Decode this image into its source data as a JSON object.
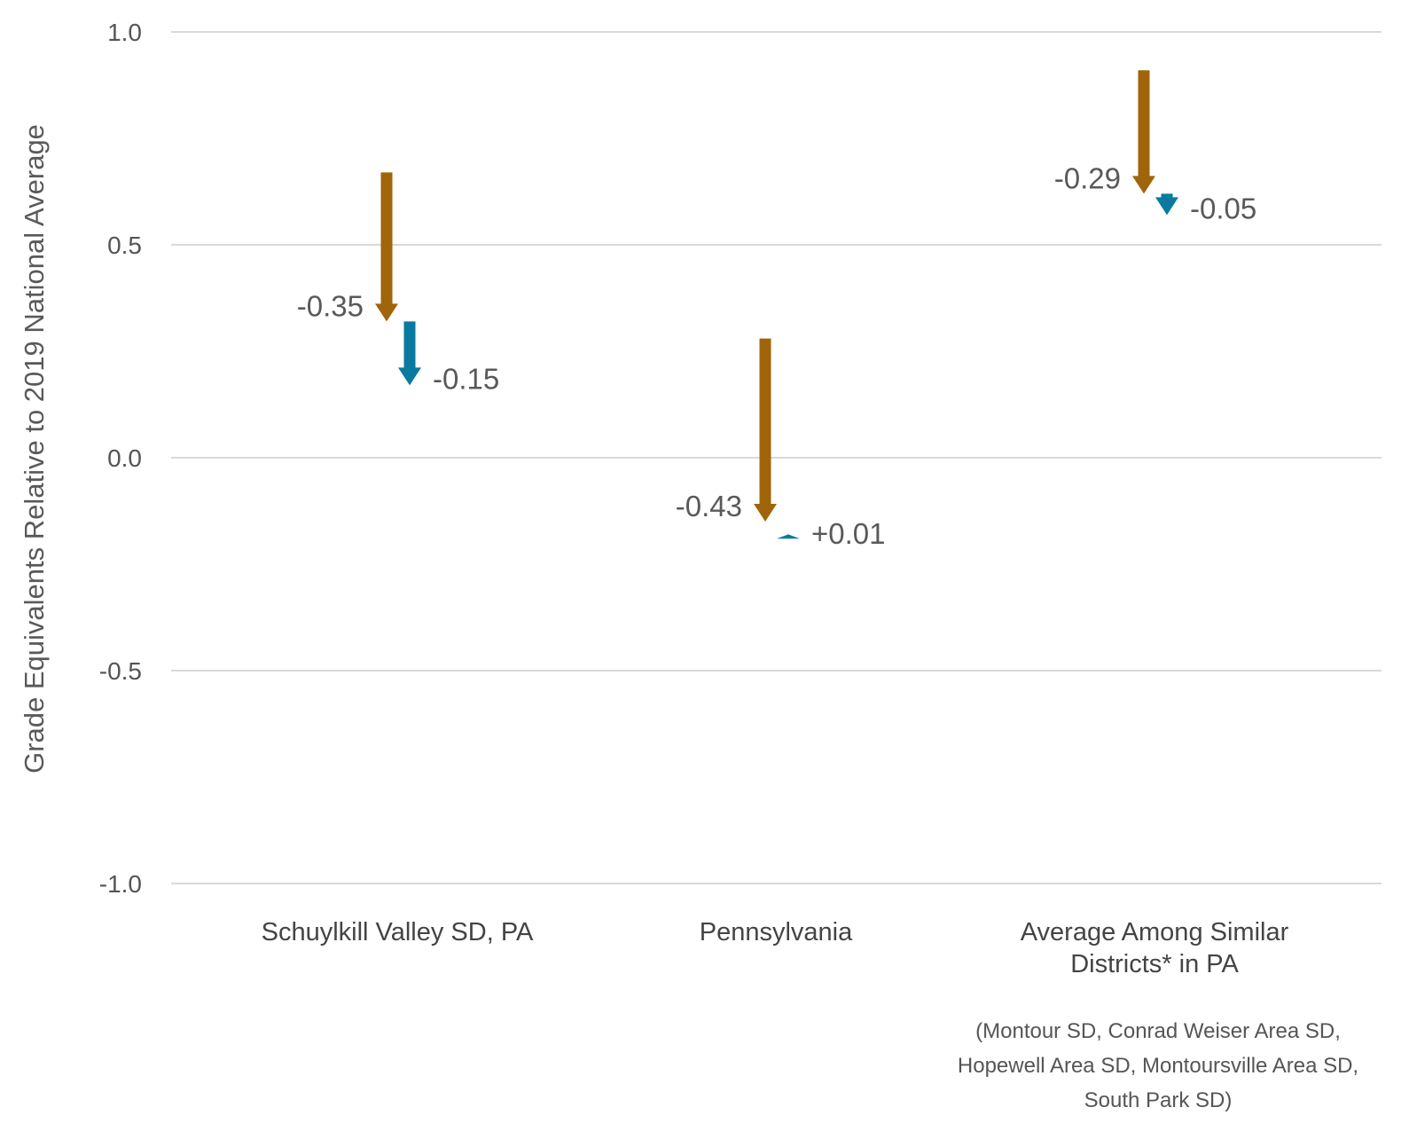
{
  "chart_data": {
    "type": "arrow",
    "ylabel": "Grade Equivalents Relative to 2019 National Average",
    "ylim": [
      -1.0,
      1.0
    ],
    "yticks": [
      {
        "value": 1.0,
        "label": "1.0"
      },
      {
        "value": 0.5,
        "label": "0.5"
      },
      {
        "value": 0.0,
        "label": "0.0"
      },
      {
        "value": -0.5,
        "label": "-0.5"
      },
      {
        "value": -1.0,
        "label": "-1.0"
      }
    ],
    "grid": true,
    "categories": [
      {
        "lines": [
          "Schuylkill Valley SD, PA"
        ]
      },
      {
        "lines": [
          "Pennsylvania"
        ]
      },
      {
        "lines": [
          "Average Among Similar",
          "Districts* in PA"
        ]
      }
    ],
    "category_note": {
      "category_index": 2,
      "lines": [
        "(Montour SD, Conrad Weiser Area SD,",
        "Hopewell Area SD, Montoursville Area SD,",
        "South Park SD)"
      ]
    },
    "series": [
      {
        "color": "#a0640a",
        "arrows": [
          {
            "category_index": 0,
            "start": 0.67,
            "end": 0.32,
            "label": "-0.35"
          },
          {
            "category_index": 1,
            "start": 0.28,
            "end": -0.15,
            "label": "-0.43"
          },
          {
            "category_index": 2,
            "start": 0.91,
            "end": 0.62,
            "label": "-0.29"
          }
        ]
      },
      {
        "color": "#0a7aa0",
        "arrows": [
          {
            "category_index": 0,
            "start": 0.32,
            "end": 0.17,
            "label": "-0.15"
          },
          {
            "category_index": 1,
            "start": -0.19,
            "end": -0.18,
            "label": "+0.01"
          },
          {
            "category_index": 2,
            "start": 0.62,
            "end": 0.57,
            "label": "-0.05"
          }
        ]
      }
    ]
  }
}
